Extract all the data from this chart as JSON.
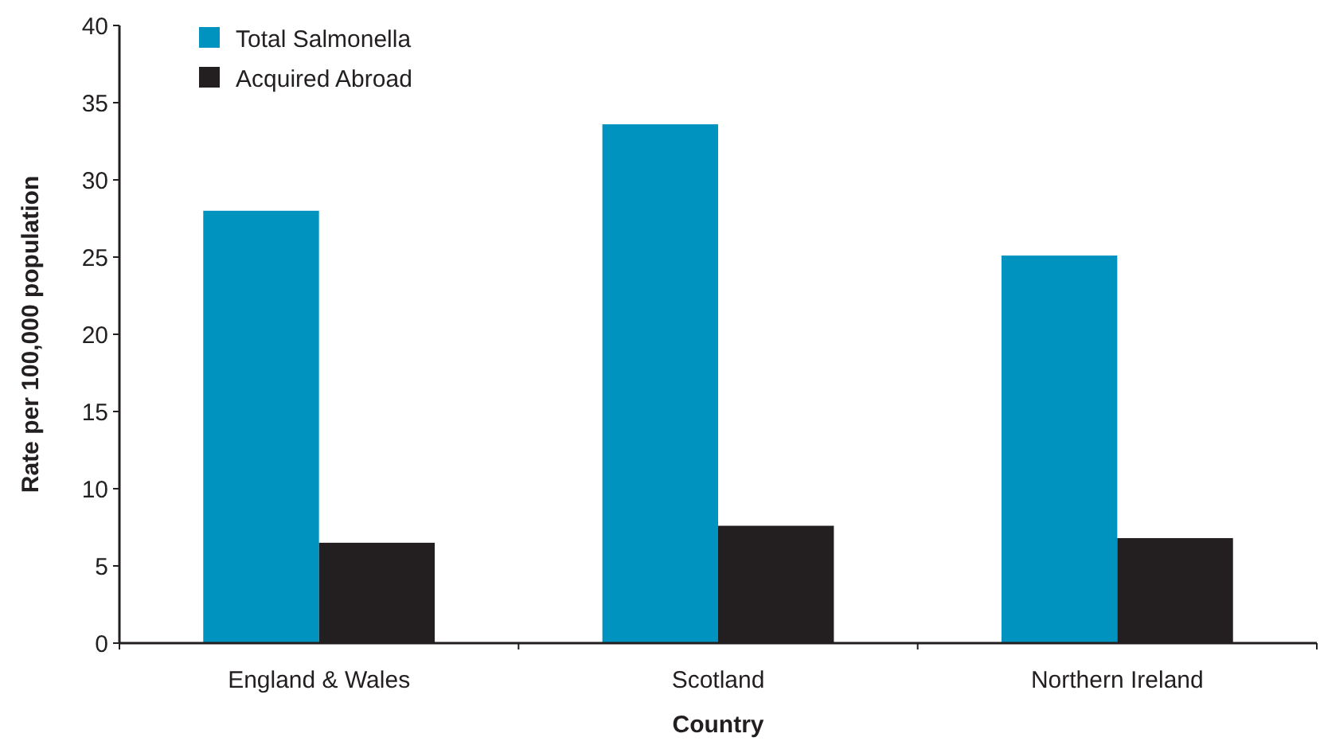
{
  "chart_data": {
    "type": "bar",
    "xlabel": "Country",
    "ylabel": "Rate per 100,000 population",
    "categories": [
      "England & Wales",
      "Scotland",
      "Northern Ireland"
    ],
    "series": [
      {
        "name": "Total Salmonella",
        "color": "#0093c0",
        "values": [
          28.0,
          33.6,
          25.1
        ]
      },
      {
        "name": "Acquired Abroad",
        "color": "#231f20",
        "values": [
          6.5,
          7.6,
          6.8
        ]
      }
    ],
    "ylim": [
      0,
      40
    ],
    "yticks": [
      0,
      5,
      10,
      15,
      20,
      25,
      30,
      35,
      40
    ],
    "grid": false,
    "legend": "top left"
  }
}
